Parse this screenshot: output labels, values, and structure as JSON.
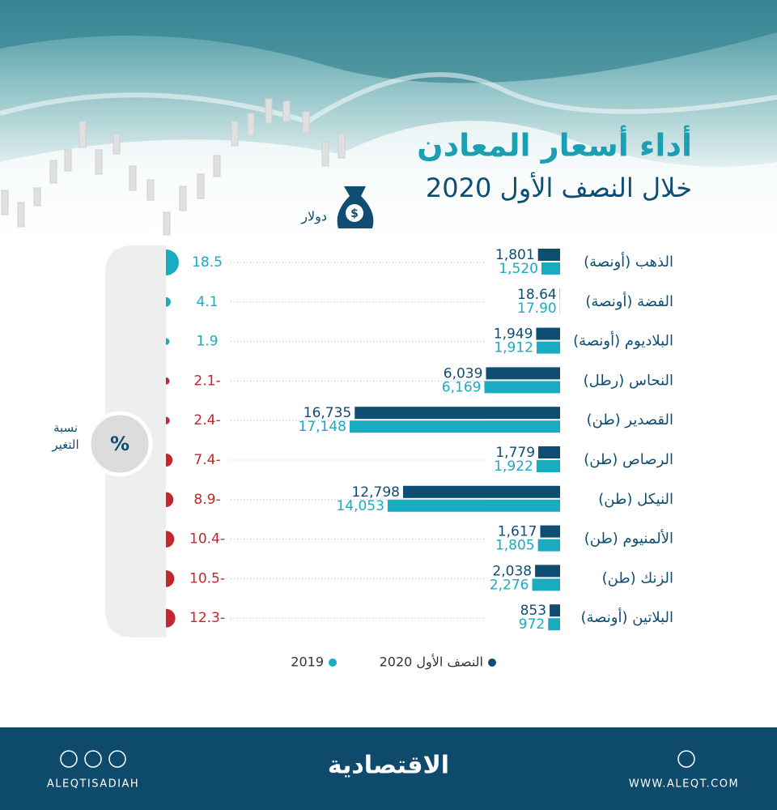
{
  "header": {
    "title": "أداء أسعار المعادن",
    "subtitle": "خلال النصف الأول 2020",
    "unit": "دولار"
  },
  "chart_data": {
    "type": "bar",
    "orientation": "horizontal",
    "categories": [
      "الذهب (أونصة)",
      "الفضة (أونصة)",
      "البلاديوم (أونصة)",
      "النحاس (رطل)",
      "القصدير (طن)",
      "الرصاص (طن)",
      "النيكل (طن)",
      "الألمنيوم (طن)",
      "الزنك (طن)",
      "البلاتين (أونصة)"
    ],
    "series": [
      {
        "name": "النصف الأول 2020",
        "color": "#0f4d72",
        "values": [
          1801,
          18.64,
          1949,
          6039,
          16735,
          1779,
          12798,
          1617,
          2038,
          853
        ],
        "value_labels": [
          "1,801",
          "18.64",
          "1,949",
          "6,039",
          "16,735",
          "1,779",
          "12,798",
          "1,617",
          "2,038",
          "853"
        ]
      },
      {
        "name": "2019",
        "color": "#19abc0",
        "values": [
          1520,
          17.9,
          1912,
          6169,
          17148,
          1922,
          14053,
          1805,
          2276,
          972
        ],
        "value_labels": [
          "1,520",
          "17.90",
          "1,912",
          "6,169",
          "17,148",
          "1,922",
          "14,053",
          "1,805",
          "2,276",
          "972"
        ]
      }
    ],
    "change": {
      "label": "نسبة التغير",
      "symbol": "%",
      "positive_color": "#19abc0",
      "negative_color": "#c1272d",
      "values": [
        18.5,
        4.1,
        1.9,
        -2.1,
        -2.4,
        -7.4,
        -8.9,
        -10.4,
        -10.5,
        -12.3
      ],
      "value_labels": [
        "18.5",
        "4.1",
        "1.9",
        "2.1-",
        "2.4-",
        "7.4-",
        "8.9-",
        "10.4-",
        "10.5-",
        "12.3-"
      ]
    }
  },
  "footer": {
    "logo": "الاقتصادية",
    "handle": "ALEQTISADIAH",
    "website": "WWW.ALEQT.COM"
  }
}
